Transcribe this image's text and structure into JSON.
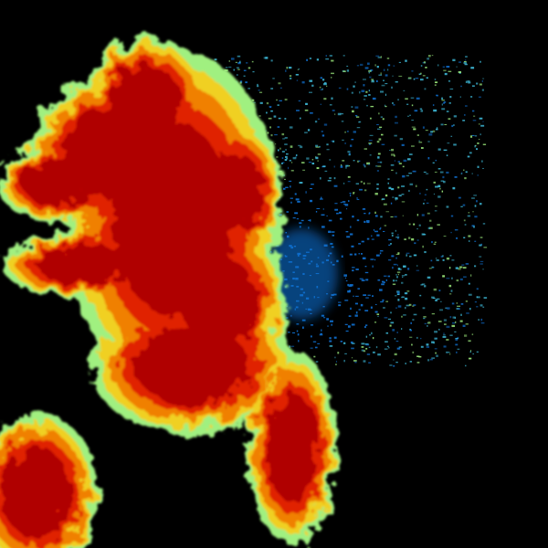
{
  "image": {
    "kind": "weather-radar-reflectivity",
    "background_color": "#000000",
    "palette": {
      "core": "#b00000",
      "heavy": "#e02000",
      "moderate": "#f08000",
      "light": "#f0d020",
      "fringe": "#a0f080",
      "cyan": "#40c0e0",
      "blue": "#1070d0"
    }
  }
}
